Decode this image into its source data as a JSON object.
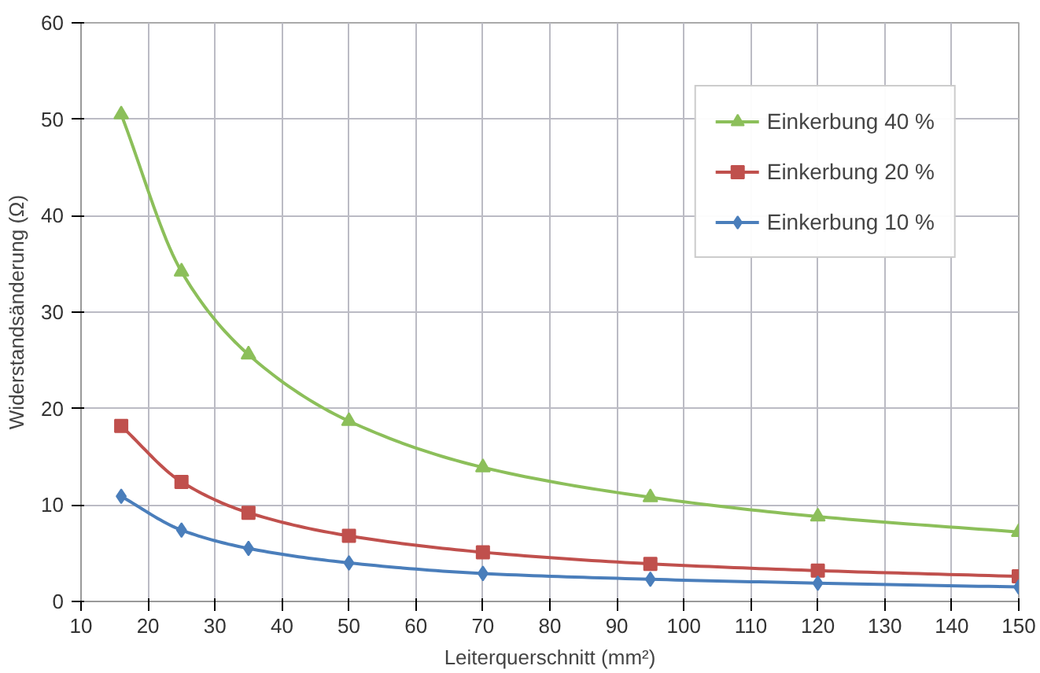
{
  "chart_data": {
    "type": "line",
    "xlabel": "Leiterquerschnitt (mm²)",
    "ylabel": "Widerstandsänderung (Ω)",
    "x": [
      16,
      25,
      35,
      50,
      70,
      95,
      120,
      150
    ],
    "series": [
      {
        "name": "Einkerbung 40 %",
        "color": "#8cbf5a",
        "marker": "triangle",
        "values": [
          50.5,
          34.2,
          25.6,
          18.7,
          13.9,
          10.8,
          8.8,
          7.2
        ]
      },
      {
        "name": "Einkerbung 20 %",
        "color": "#c0504d",
        "marker": "square",
        "values": [
          18.2,
          12.4,
          9.2,
          6.8,
          5.1,
          3.9,
          3.2,
          2.6
        ]
      },
      {
        "name": "Einkerbung 10 %",
        "color": "#4a7ebb",
        "marker": "diamond",
        "values": [
          10.9,
          7.4,
          5.5,
          4.0,
          2.9,
          2.3,
          1.9,
          1.5
        ]
      }
    ],
    "xlim": [
      10,
      150
    ],
    "xticks": [
      10,
      20,
      30,
      40,
      50,
      60,
      70,
      80,
      90,
      100,
      110,
      120,
      130,
      140,
      150
    ],
    "ylim": [
      0,
      60
    ],
    "yticks": [
      0,
      10,
      20,
      30,
      40,
      50,
      60
    ],
    "grid": true,
    "legend": "top right",
    "line_style": "solid"
  }
}
